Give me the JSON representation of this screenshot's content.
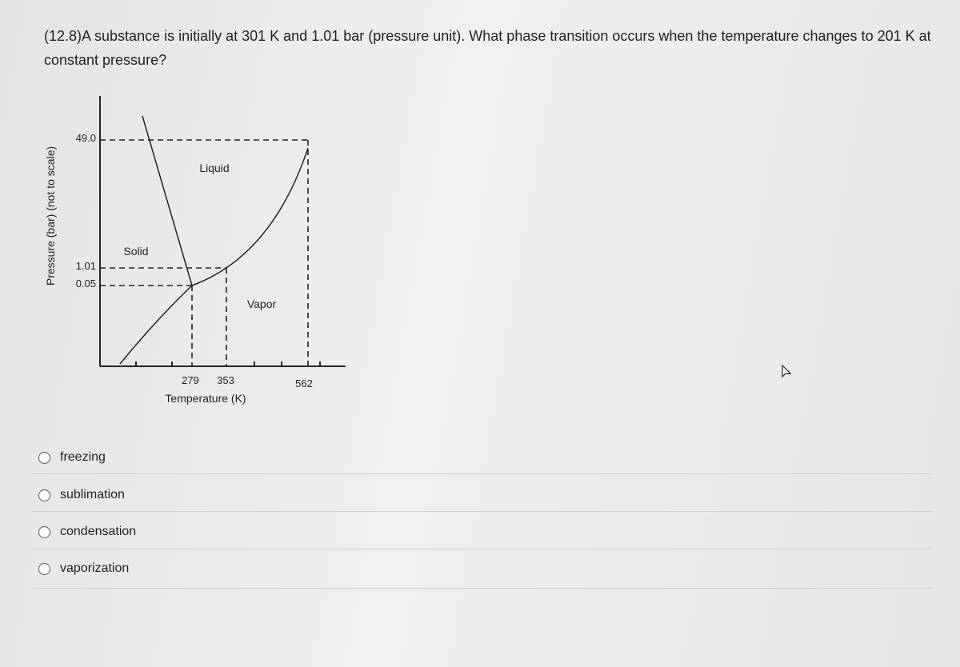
{
  "question": {
    "text": "(12.8)A substance is initially at 301 K and 1.01 bar (pressure unit). What phase transition occurs when the temperature changes to 201 K at constant pressure?"
  },
  "diagram": {
    "y_axis_label": "Pressure (bar) (not to scale)",
    "x_axis_label": "Temperature (K)",
    "y_labels": [
      "49.0",
      "1.01",
      "0.05"
    ],
    "x_labels": [
      "279",
      "353",
      "562"
    ],
    "regions": [
      "Liquid",
      "Solid",
      "Vapor"
    ]
  },
  "options": [
    "freezing",
    "sublimation",
    "condensation",
    "vaporization"
  ]
}
